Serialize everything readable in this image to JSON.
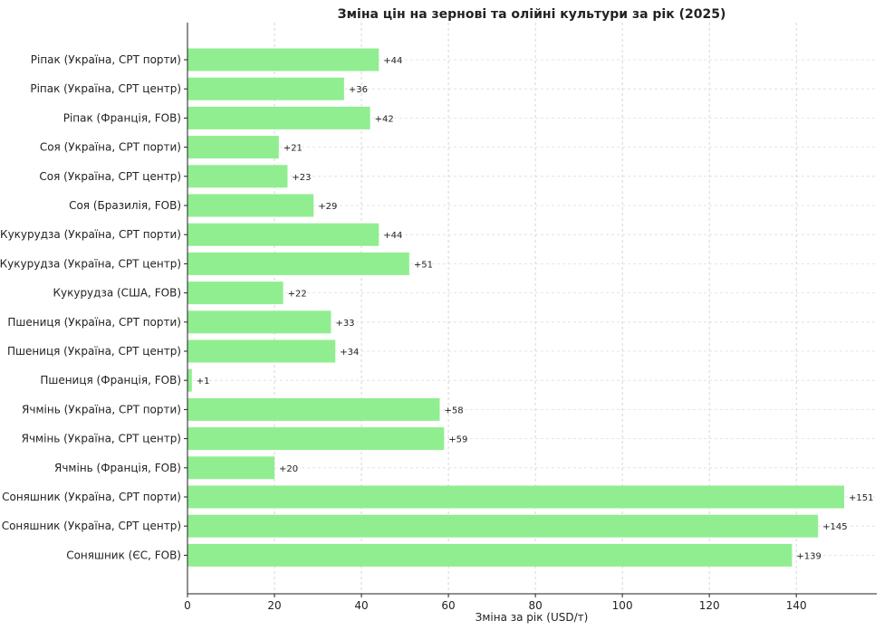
{
  "chart_data": {
    "type": "bar",
    "orientation": "horizontal",
    "title": "Зміна цін на зернові та олійні культури за рік (2025)",
    "xlabel": "Зміна за рік (USD/т)",
    "ylabel": "",
    "xlim": [
      0,
      158.5
    ],
    "xticks": [
      0,
      20,
      40,
      60,
      80,
      100,
      120,
      140
    ],
    "grid": true,
    "bar_color": "#90EE90",
    "categories": [
      "Ріпак (Україна, CPT порти)",
      "Ріпак (Україна, CPT центр)",
      "Ріпак (Франція, FOB)",
      "Соя (Україна, CPT порти)",
      "Соя (Україна, CPT центр)",
      "Соя (Бразилія, FOB)",
      "Кукурудза (Україна, CPT порти)",
      "Кукурудза (Україна, CPT центр)",
      "Кукурудза (США, FOB)",
      "Пшениця (Україна, CPT порти)",
      "Пшениця (Україна, CPT центр)",
      "Пшениця (Франція, FOB)",
      "Ячмінь (Україна, CPT порти)",
      "Ячмінь (Україна, CPT центр)",
      "Ячмінь (Франція, FOB)",
      "Соняшник (Україна, CPT порти)",
      "Соняшник (Україна, CPT центр)",
      "Соняшник (ЄС, FOB)"
    ],
    "values": [
      44,
      36,
      42,
      21,
      23,
      29,
      44,
      51,
      22,
      33,
      34,
      1,
      58,
      59,
      20,
      151,
      145,
      139
    ],
    "value_labels": [
      "+44",
      "+36",
      "+42",
      "+21",
      "+23",
      "+29",
      "+44",
      "+51",
      "+22",
      "+33",
      "+34",
      "+1",
      "+58",
      "+59",
      "+20",
      "+151",
      "+145",
      "+139"
    ]
  }
}
